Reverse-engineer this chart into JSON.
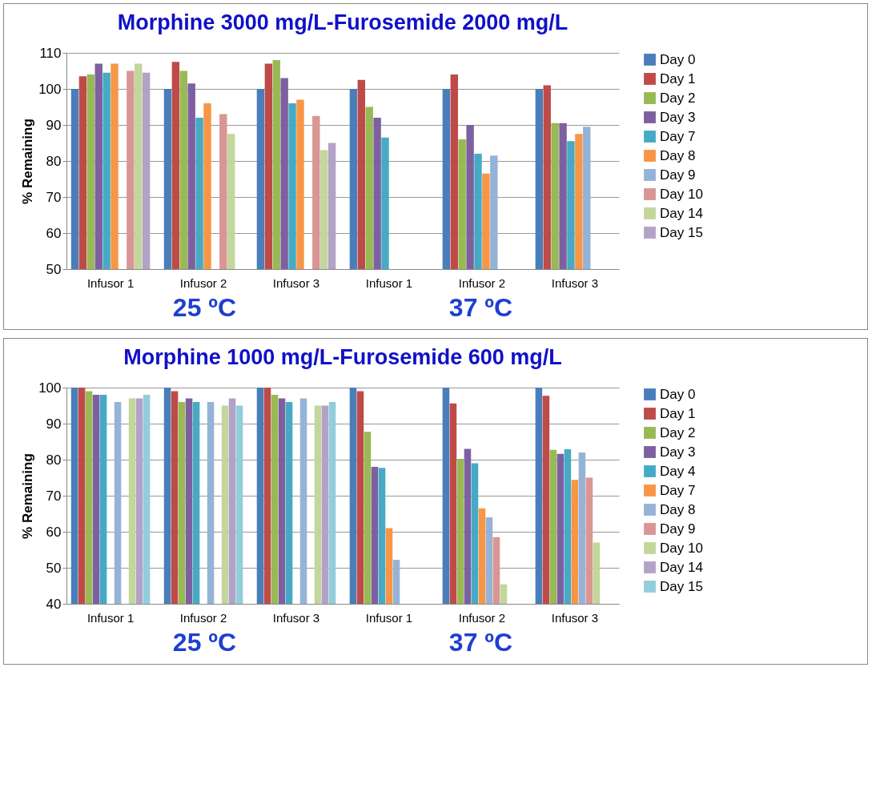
{
  "chart_data": [
    {
      "type": "bar",
      "title": "Morphine 3000 mg/L-Furosemide 2000 mg/L",
      "ylabel": "% Remaining",
      "categories": [
        "Infusor 1",
        "Infusor 2",
        "Infusor 3",
        "Infusor 1",
        "Infusor 2",
        "Infusor 3"
      ],
      "annotations": [
        "25 ºC",
        "37 ºC"
      ],
      "ylim": [
        50,
        110
      ],
      "yticks": [
        50,
        60,
        70,
        80,
        90,
        100,
        110
      ],
      "grid": "y",
      "legend": "right",
      "series": [
        {
          "name": "Day 0",
          "color": "#4a7ebb",
          "values": [
            100,
            100,
            100,
            100,
            100,
            100
          ]
        },
        {
          "name": "Day 1",
          "color": "#be4b48",
          "values": [
            103.5,
            107.5,
            107,
            102.5,
            104,
            101
          ]
        },
        {
          "name": "Day 2",
          "color": "#98b954",
          "values": [
            104,
            105,
            108,
            95,
            86,
            90.5
          ]
        },
        {
          "name": "Day 3",
          "color": "#7d60a0",
          "values": [
            107,
            101.5,
            103,
            92,
            90,
            90.5
          ]
        },
        {
          "name": "Day 7",
          "color": "#46aac5",
          "values": [
            104.5,
            92,
            96,
            86.5,
            82,
            85.5
          ]
        },
        {
          "name": "Day 8",
          "color": "#f79646",
          "values": [
            107,
            96,
            97,
            null,
            76.5,
            87.5
          ]
        },
        {
          "name": "Day 9",
          "color": "#95b3d7",
          "values": [
            null,
            null,
            null,
            null,
            81.5,
            89.5
          ]
        },
        {
          "name": "Day 10",
          "color": "#d99694",
          "values": [
            105,
            93,
            92.5,
            null,
            null,
            null
          ]
        },
        {
          "name": "Day 14",
          "color": "#c3d69b",
          "values": [
            107,
            87.5,
            83,
            null,
            null,
            null
          ]
        },
        {
          "name": "Day 15",
          "color": "#b3a2c7",
          "values": [
            104.5,
            null,
            85,
            null,
            null,
            null
          ]
        }
      ]
    },
    {
      "type": "bar",
      "title": "Morphine 1000 mg/L-Furosemide 600 mg/L",
      "ylabel": "% Remaining",
      "categories": [
        "Infusor 1",
        "Infusor 2",
        "Infusor 3",
        "Infusor 1",
        "Infusor 2",
        "Infusor 3"
      ],
      "annotations": [
        "25 ºC",
        "37 ºC"
      ],
      "ylim": [
        40,
        100
      ],
      "yticks": [
        40,
        50,
        60,
        70,
        80,
        90,
        100
      ],
      "grid": "y",
      "legend": "right",
      "series": [
        {
          "name": "Day 0",
          "color": "#4a7ebb",
          "values": [
            100,
            100,
            100,
            100,
            100,
            100
          ]
        },
        {
          "name": "Day 1",
          "color": "#be4b48",
          "values": [
            100,
            99,
            100,
            99,
            95.6,
            97.7
          ]
        },
        {
          "name": "Day 2",
          "color": "#98b954",
          "values": [
            99,
            96,
            98,
            87.7,
            80.2,
            82.7
          ]
        },
        {
          "name": "Day 3",
          "color": "#7d60a0",
          "values": [
            98,
            97,
            97,
            78,
            83,
            81.6
          ]
        },
        {
          "name": "Day 4",
          "color": "#46aac5",
          "values": [
            98,
            96,
            96,
            77.7,
            79,
            82.9
          ]
        },
        {
          "name": "Day 7",
          "color": "#f79646",
          "values": [
            null,
            null,
            null,
            61,
            66.5,
            74.4
          ]
        },
        {
          "name": "Day 8",
          "color": "#95b3d7",
          "values": [
            96,
            96,
            97,
            52.2,
            64,
            82
          ]
        },
        {
          "name": "Day 9",
          "color": "#d99694",
          "values": [
            null,
            null,
            null,
            null,
            58.5,
            75
          ]
        },
        {
          "name": "Day 10",
          "color": "#c3d69b",
          "values": [
            97,
            95,
            95,
            null,
            45.4,
            57
          ]
        },
        {
          "name": "Day 14",
          "color": "#b3a2c7",
          "values": [
            97,
            97,
            95,
            null,
            null,
            null
          ]
        },
        {
          "name": "Day 15",
          "color": "#92cddc",
          "values": [
            98,
            95,
            96,
            null,
            null,
            null
          ]
        }
      ]
    }
  ]
}
